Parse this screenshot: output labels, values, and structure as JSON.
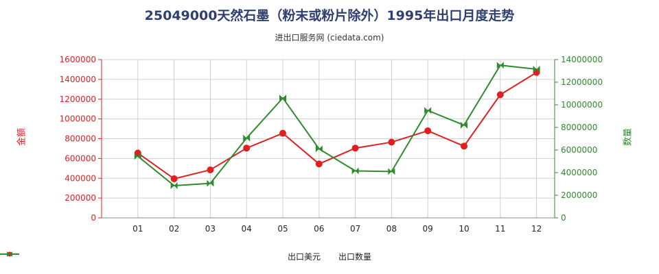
{
  "chart_data": {
    "type": "line",
    "title": "25049000天然石墨（粉末或粉片除外）1995年出口月度走势",
    "subtitle": "进出口服务网 (ciedata.com)",
    "categories": [
      "01",
      "02",
      "03",
      "04",
      "05",
      "06",
      "07",
      "08",
      "09",
      "10",
      "11",
      "12"
    ],
    "y_left": {
      "label": "金额",
      "range": [
        0,
        1600000
      ],
      "ticks": [
        0,
        200000,
        400000,
        600000,
        800000,
        1000000,
        1200000,
        1400000,
        1600000
      ],
      "tick_labels": [
        "0",
        "200000",
        "400000",
        "600000",
        "800000",
        "1000000",
        "1200000",
        "1400000",
        "1600000"
      ],
      "color": "#e02020"
    },
    "y_right": {
      "label": "数量",
      "range": [
        0,
        14000000
      ],
      "ticks": [
        0,
        2000000,
        4000000,
        6000000,
        8000000,
        10000000,
        12000000,
        14000000
      ],
      "tick_labels": [
        "0",
        "2000000",
        "4000000",
        "6000000",
        "8000000",
        "10000000",
        "12000000",
        "14000000"
      ],
      "color": "#2e8b2e"
    },
    "series": [
      {
        "name": "出口美元",
        "axis": "left",
        "color": "#e02020",
        "values": [
          655000,
          395000,
          485000,
          705000,
          855000,
          545000,
          705000,
          765000,
          880000,
          725000,
          1245000,
          1470000
        ]
      },
      {
        "name": "出口数量",
        "axis": "right",
        "color": "#2e8b2e",
        "values": [
          5450000,
          2850000,
          3050000,
          7050000,
          10600000,
          6100000,
          4150000,
          4100000,
          9500000,
          8200000,
          13500000,
          13150000
        ]
      }
    ],
    "grid": true,
    "legend_position": "bottom"
  }
}
